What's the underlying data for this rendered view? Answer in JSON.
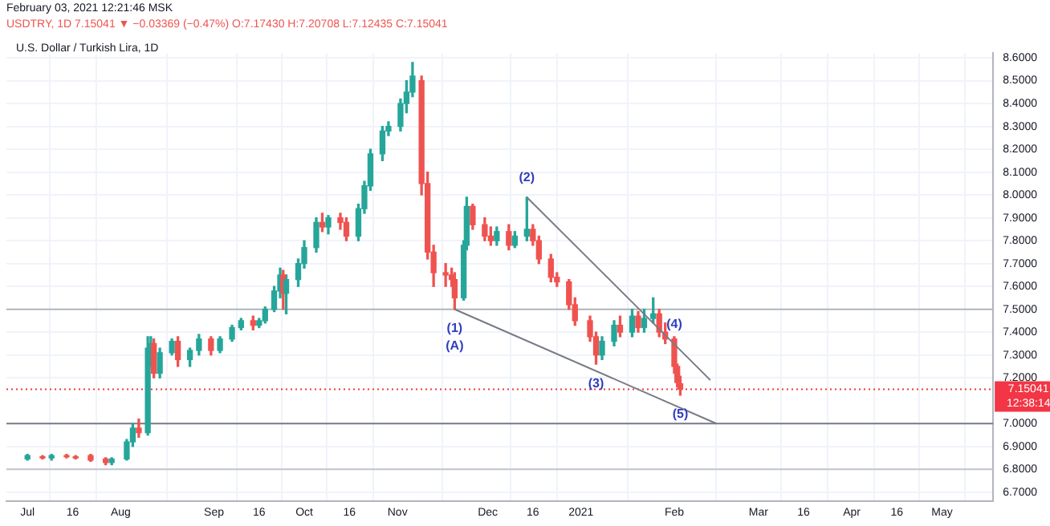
{
  "chart_data": {
    "type": "candlestick",
    "title": "U.S. Dollar / Turkish Lira, 1D",
    "subtitle": "USDTRY, 1D 7.15041 ▼ −0.03369 (−0.47%) O:7.17430 H:7.20708 L:7.12435 C:7.15041",
    "annotations": [
      "February 03, 2021 12:21:46 MSK",
      "12:38:14",
      {
        "text": "(1)",
        "x": "2020-11-20",
        "y": 7.5
      },
      {
        "text": "(A)",
        "x": "2020-11-20",
        "y": 7.5
      },
      {
        "text": "(2)",
        "x": "2020-12-14",
        "y": 7.99
      },
      {
        "text": "(3)",
        "x": "2021-01-06",
        "y": 7.26
      },
      {
        "text": "(4)",
        "x": "2021-02-01",
        "y": 7.35
      },
      {
        "text": "(5)",
        "x": "2021-02-03",
        "y": 7.12435
      }
    ],
    "x": [
      "2020-07-01",
      "2020-07-06",
      "2020-07-09",
      "2020-07-14",
      "2020-07-17",
      "2020-07-22",
      "2020-07-27",
      "2020-07-29",
      "2020-08-03",
      "2020-08-05",
      "2020-08-07",
      "2020-08-10",
      "2020-08-11",
      "2020-08-12",
      "2020-08-14",
      "2020-08-18",
      "2020-08-20",
      "2020-08-24",
      "2020-08-27",
      "2020-08-31",
      "2020-09-03",
      "2020-09-07",
      "2020-09-10",
      "2020-09-14",
      "2020-09-16",
      "2020-09-18",
      "2020-09-21",
      "2020-09-23",
      "2020-09-24",
      "2020-09-25",
      "2020-09-29",
      "2020-10-01",
      "2020-10-05",
      "2020-10-07",
      "2020-10-09",
      "2020-10-13",
      "2020-10-15",
      "2020-10-19",
      "2020-10-21",
      "2020-10-23",
      "2020-10-27",
      "2020-10-29",
      "2020-11-02",
      "2020-11-04",
      "2020-11-06",
      "2020-11-09",
      "2020-11-11",
      "2020-11-13",
      "2020-11-17",
      "2020-11-19",
      "2020-11-20",
      "2020-11-23",
      "2020-11-24",
      "2020-11-26",
      "2020-11-30",
      "2020-12-02",
      "2020-12-04",
      "2020-12-08",
      "2020-12-10",
      "2020-12-14",
      "2020-12-16",
      "2020-12-18",
      "2020-12-22",
      "2020-12-24",
      "2020-12-28",
      "2020-12-30",
      "2021-01-04",
      "2021-01-06",
      "2021-01-08",
      "2021-01-12",
      "2021-01-14",
      "2021-01-18",
      "2021-01-20",
      "2021-01-22",
      "2021-01-25",
      "2021-01-27",
      "2021-01-29",
      "2021-02-01",
      "2021-02-02",
      "2021-02-03"
    ],
    "ohlc": [
      [
        6.845,
        6.865,
        6.84,
        6.86
      ],
      [
        6.855,
        6.86,
        6.845,
        6.85
      ],
      [
        6.85,
        6.865,
        6.84,
        6.86
      ],
      [
        6.86,
        6.865,
        6.85,
        6.855
      ],
      [
        6.855,
        6.86,
        6.845,
        6.85
      ],
      [
        6.86,
        6.865,
        6.835,
        6.84
      ],
      [
        6.845,
        6.85,
        6.82,
        6.83
      ],
      [
        6.83,
        6.85,
        6.82,
        6.845
      ],
      [
        6.845,
        6.93,
        6.84,
        6.92
      ],
      [
        6.92,
        7.0,
        6.9,
        6.98
      ],
      [
        6.98,
        7.02,
        6.94,
        6.96
      ],
      [
        6.96,
        7.38,
        6.95,
        7.33
      ],
      [
        7.33,
        7.38,
        7.25,
        7.35
      ],
      [
        7.35,
        7.37,
        7.2,
        7.22
      ],
      [
        7.22,
        7.33,
        7.2,
        7.31
      ],
      [
        7.31,
        7.37,
        7.3,
        7.36
      ],
      [
        7.36,
        7.38,
        7.25,
        7.28
      ],
      [
        7.28,
        7.33,
        7.25,
        7.32
      ],
      [
        7.32,
        7.39,
        7.3,
        7.37
      ],
      [
        7.37,
        7.38,
        7.3,
        7.32
      ],
      [
        7.32,
        7.38,
        7.31,
        7.37
      ],
      [
        7.37,
        7.43,
        7.36,
        7.42
      ],
      [
        7.42,
        7.46,
        7.41,
        7.45
      ],
      [
        7.45,
        7.47,
        7.41,
        7.43
      ],
      [
        7.43,
        7.46,
        7.42,
        7.45
      ],
      [
        7.45,
        7.51,
        7.44,
        7.5
      ],
      [
        7.5,
        7.6,
        7.49,
        7.58
      ],
      [
        7.58,
        7.68,
        7.55,
        7.65
      ],
      [
        7.65,
        7.67,
        7.5,
        7.57
      ],
      [
        7.57,
        7.65,
        7.48,
        7.63
      ],
      [
        7.63,
        7.72,
        7.6,
        7.7
      ],
      [
        7.7,
        7.8,
        7.68,
        7.77
      ],
      [
        7.77,
        7.9,
        7.75,
        7.88
      ],
      [
        7.88,
        7.92,
        7.84,
        7.86
      ],
      [
        7.86,
        7.91,
        7.83,
        7.9
      ],
      [
        7.9,
        7.92,
        7.85,
        7.88
      ],
      [
        7.88,
        7.9,
        7.8,
        7.82
      ],
      [
        7.82,
        7.96,
        7.8,
        7.94
      ],
      [
        7.94,
        8.06,
        7.92,
        8.04
      ],
      [
        8.04,
        8.2,
        8.02,
        8.18
      ],
      [
        8.18,
        8.3,
        8.15,
        8.28
      ],
      [
        8.28,
        8.32,
        8.26,
        8.3
      ],
      [
        8.3,
        8.42,
        8.28,
        8.4
      ],
      [
        8.4,
        8.5,
        8.36,
        8.45
      ],
      [
        8.45,
        8.58,
        8.43,
        8.52
      ],
      [
        8.5,
        8.52,
        8.0,
        8.05
      ],
      [
        8.05,
        8.1,
        7.72,
        7.75
      ],
      [
        7.75,
        7.78,
        7.6,
        7.66
      ],
      [
        7.66,
        7.7,
        7.6,
        7.65
      ],
      [
        7.65,
        7.68,
        7.6,
        7.63
      ],
      [
        7.63,
        7.66,
        7.5,
        7.55
      ],
      [
        7.55,
        7.8,
        7.54,
        7.78
      ],
      [
        7.78,
        7.99,
        7.76,
        7.95
      ],
      [
        7.95,
        7.96,
        7.85,
        7.87
      ],
      [
        7.87,
        7.9,
        7.8,
        7.82
      ],
      [
        7.82,
        7.86,
        7.78,
        7.8
      ],
      [
        7.8,
        7.86,
        7.78,
        7.84
      ],
      [
        7.84,
        7.87,
        7.76,
        7.78
      ],
      [
        7.78,
        7.84,
        7.77,
        7.82
      ],
      [
        7.82,
        7.99,
        7.8,
        7.85
      ],
      [
        7.85,
        7.87,
        7.78,
        7.8
      ],
      [
        7.8,
        7.82,
        7.7,
        7.72
      ],
      [
        7.72,
        7.74,
        7.62,
        7.64
      ],
      [
        7.64,
        7.66,
        7.6,
        7.62
      ],
      [
        7.62,
        7.63,
        7.5,
        7.52
      ],
      [
        7.52,
        7.55,
        7.43,
        7.45
      ],
      [
        7.45,
        7.47,
        7.36,
        7.38
      ],
      [
        7.38,
        7.4,
        7.26,
        7.3
      ],
      [
        7.3,
        7.38,
        7.28,
        7.36
      ],
      [
        7.36,
        7.45,
        7.34,
        7.43
      ],
      [
        7.43,
        7.47,
        7.38,
        7.4
      ],
      [
        7.4,
        7.5,
        7.38,
        7.47
      ],
      [
        7.47,
        7.49,
        7.4,
        7.42
      ],
      [
        7.42,
        7.5,
        7.4,
        7.46
      ],
      [
        7.46,
        7.55,
        7.44,
        7.48
      ],
      [
        7.48,
        7.5,
        7.38,
        7.4
      ],
      [
        7.4,
        7.44,
        7.35,
        7.37
      ],
      [
        7.37,
        7.38,
        7.22,
        7.25
      ],
      [
        7.25,
        7.26,
        7.16,
        7.18
      ],
      [
        7.1743,
        7.20708,
        7.12435,
        7.15041
      ]
    ],
    "series": [
      {
        "type": "line",
        "x": [
          "2020-12-14",
          "2021-02-13"
        ],
        "values": [
          7.99,
          7.19
        ],
        "color": "#787b86"
      },
      {
        "type": "line",
        "x": [
          "2020-11-20",
          "2021-02-15"
        ],
        "values": [
          7.5,
          7.0
        ],
        "color": "#787b86"
      }
    ],
    "ref_lines": [
      {
        "axis": "y",
        "value": 7.0,
        "color": "#787b86"
      },
      {
        "axis": "y",
        "value": 7.5,
        "color": "#b2b5be"
      },
      {
        "axis": "y",
        "value": 6.8,
        "color": "#c1c4cc"
      },
      {
        "axis": "y",
        "value": 7.15041,
        "label": "7.15041",
        "color": "#f23645",
        "line_style": "dotted"
      }
    ],
    "xlim": [
      "2020-06-24",
      "2021-05-18"
    ],
    "xticks": [
      {
        "value": "2020-07-01",
        "label": "Jul"
      },
      {
        "value": "2020-07-16",
        "label": "16"
      },
      {
        "value": "2020-08-01",
        "label": "Aug"
      },
      {
        "value": "2020-09-01",
        "label": "Sep"
      },
      {
        "value": "2020-09-16",
        "label": "16"
      },
      {
        "value": "2020-10-01",
        "label": "Oct"
      },
      {
        "value": "2020-10-16",
        "label": "16"
      },
      {
        "value": "2020-11-01",
        "label": "Nov"
      },
      {
        "value": "2020-12-01",
        "label": "Dec"
      },
      {
        "value": "2020-12-16",
        "label": "16"
      },
      {
        "value": "2021-01-01",
        "label": "2021"
      },
      {
        "value": "2021-02-01",
        "label": "Feb"
      },
      {
        "value": "2021-03-01",
        "label": "Mar"
      },
      {
        "value": "2021-03-16",
        "label": "16"
      },
      {
        "value": "2021-04-01",
        "label": "Apr"
      },
      {
        "value": "2021-04-16",
        "label": "16"
      },
      {
        "value": "2021-05-01",
        "label": "May"
      }
    ],
    "ylim": [
      6.66,
      8.62
    ],
    "yticks": [
      {
        "value": 6.7,
        "label": "6.7000"
      },
      {
        "value": 6.8,
        "label": "6.8000"
      },
      {
        "value": 6.9,
        "label": "6.9000"
      },
      {
        "value": 7.0,
        "label": "7.0000"
      },
      {
        "value": 7.2,
        "label": "7.2000"
      },
      {
        "value": 7.3,
        "label": "7.3000"
      },
      {
        "value": 7.4,
        "label": "7.4000"
      },
      {
        "value": 7.5,
        "label": "7.5000"
      },
      {
        "value": 7.6,
        "label": "7.6000"
      },
      {
        "value": 7.7,
        "label": "7.7000"
      },
      {
        "value": 7.8,
        "label": "7.8000"
      },
      {
        "value": 7.9,
        "label": "7.9000"
      },
      {
        "value": 8.0,
        "label": "8.0000"
      },
      {
        "value": 8.1,
        "label": "8.1000"
      },
      {
        "value": 8.2,
        "label": "8.2000"
      },
      {
        "value": 8.3,
        "label": "8.3000"
      },
      {
        "value": 8.4,
        "label": "8.4000"
      },
      {
        "value": 8.5,
        "label": "8.5000"
      },
      {
        "value": 8.6,
        "label": "8.6000"
      }
    ],
    "grid": true
  }
}
